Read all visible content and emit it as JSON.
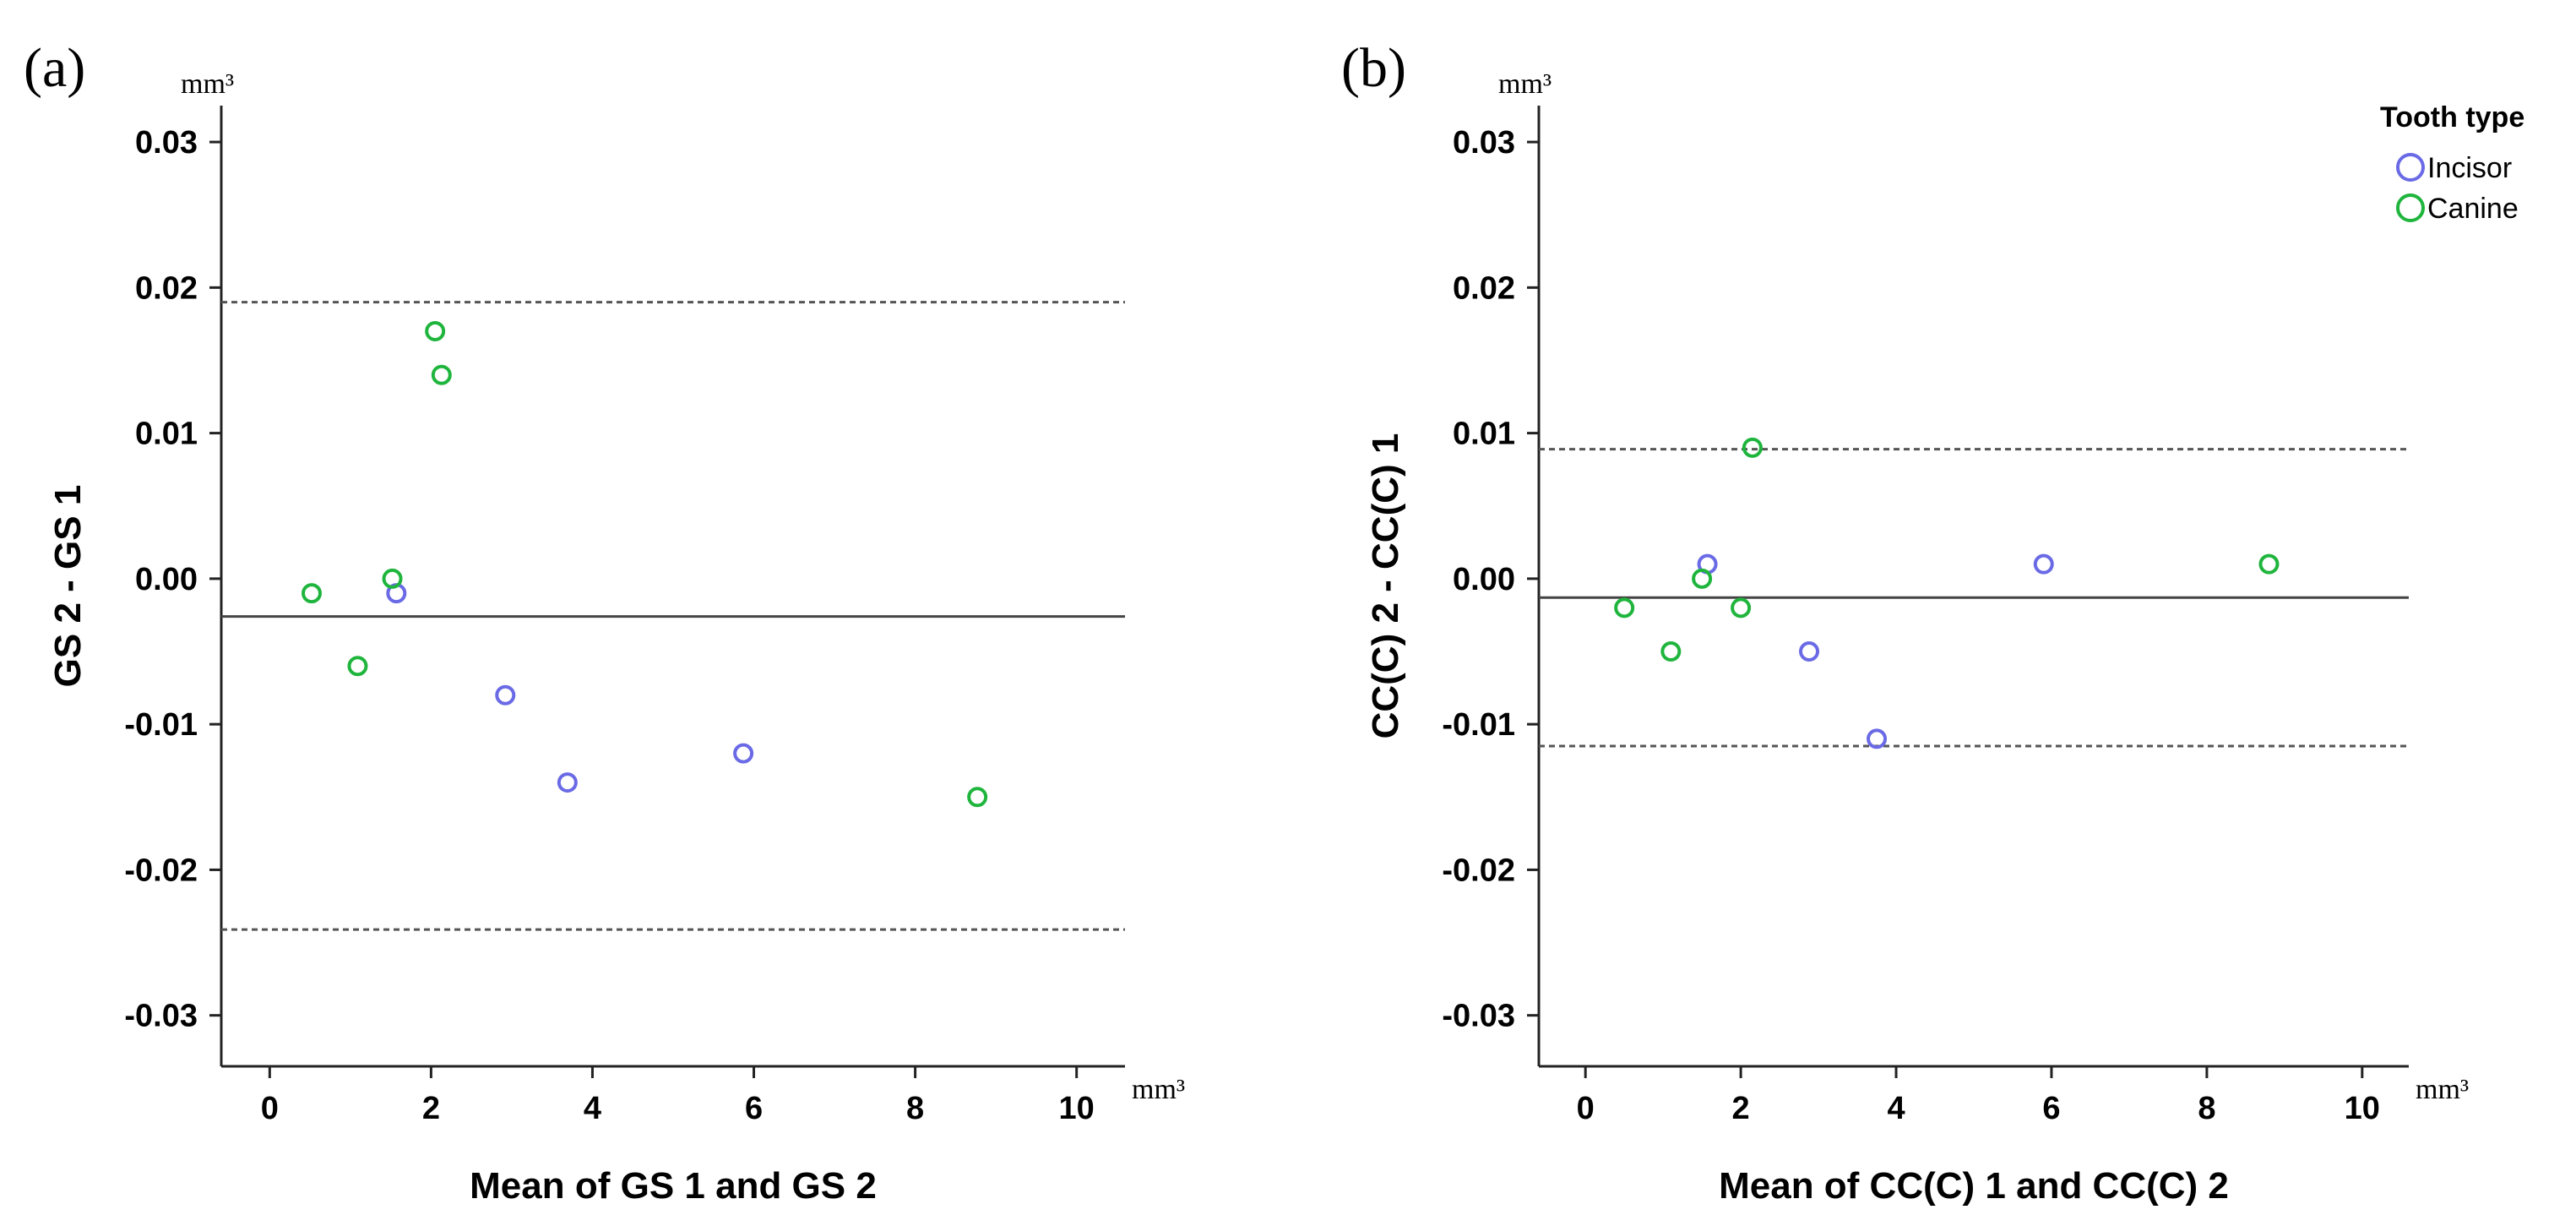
{
  "chart_data": [
    {
      "panel_label": "(a)",
      "type": "scatter",
      "y_unit": "mm³",
      "x_unit": "mm³",
      "xlabel": "Mean of GS 1 and GS 2",
      "ylabel": "GS 2 - GS 1",
      "xlim": [
        -0.6,
        10.6
      ],
      "ylim": [
        -0.0335,
        0.0325
      ],
      "x_ticks": [
        0,
        2,
        4,
        6,
        8,
        10
      ],
      "x_tick_labels": [
        "0",
        "2",
        "4",
        "6",
        "8",
        "10"
      ],
      "y_ticks": [
        0.03,
        0.02,
        0.01,
        0.0,
        -0.01,
        -0.02,
        -0.03
      ],
      "y_tick_labels": [
        "0.03",
        "0.02",
        "0.01",
        "0.00",
        "-0.01",
        "-0.02",
        "-0.03"
      ],
      "mean_line": -0.0026,
      "limits_of_agreement": [
        0.019,
        -0.0241
      ],
      "series": [
        {
          "name": "Incisor",
          "color": "#6a6ae6",
          "points": [
            [
              1.57,
              -0.001
            ],
            [
              2.92,
              -0.008
            ],
            [
              3.69,
              -0.014
            ],
            [
              5.87,
              -0.012
            ]
          ]
        },
        {
          "name": "Canine",
          "color": "#1fb53d",
          "points": [
            [
              0.52,
              -0.001
            ],
            [
              1.09,
              -0.006
            ],
            [
              1.52,
              0.0
            ],
            [
              2.05,
              0.017
            ],
            [
              2.13,
              0.014
            ],
            [
              8.77,
              -0.015
            ]
          ]
        }
      ]
    },
    {
      "panel_label": "(b)",
      "type": "scatter",
      "y_unit": "mm³",
      "x_unit": "mm³",
      "xlabel": "Mean of CC(C) 1 and CC(C) 2",
      "ylabel": "CC(C) 2 - CC(C) 1",
      "xlim": [
        -0.6,
        10.6
      ],
      "ylim": [
        -0.0335,
        0.0325
      ],
      "x_ticks": [
        0,
        2,
        4,
        6,
        8,
        10
      ],
      "x_tick_labels": [
        "0",
        "2",
        "4",
        "6",
        "8",
        "10"
      ],
      "y_ticks": [
        0.03,
        0.02,
        0.01,
        0.0,
        -0.01,
        -0.02,
        -0.03
      ],
      "y_tick_labels": [
        "0.03",
        "0.02",
        "0.01",
        "0.00",
        "-0.01",
        "-0.02",
        "-0.03"
      ],
      "mean_line": -0.0013,
      "limits_of_agreement": [
        0.0089,
        -0.0115
      ],
      "series": [
        {
          "name": "Incisor",
          "color": "#6a6ae6",
          "points": [
            [
              1.57,
              0.001
            ],
            [
              2.88,
              -0.005
            ],
            [
              3.75,
              -0.011
            ],
            [
              5.9,
              0.001
            ]
          ]
        },
        {
          "name": "Canine",
          "color": "#1fb53d",
          "points": [
            [
              0.5,
              -0.002
            ],
            [
              1.1,
              -0.005
            ],
            [
              1.5,
              0.0
            ],
            [
              2.0,
              -0.002
            ],
            [
              2.15,
              0.009
            ],
            [
              8.8,
              0.001
            ]
          ]
        }
      ],
      "legend": {
        "title": "Tooth type",
        "position": "top-right",
        "items": [
          {
            "label": "Incisor",
            "color": "#6a6ae6"
          },
          {
            "label": "Canine",
            "color": "#1fb53d"
          }
        ]
      }
    }
  ]
}
